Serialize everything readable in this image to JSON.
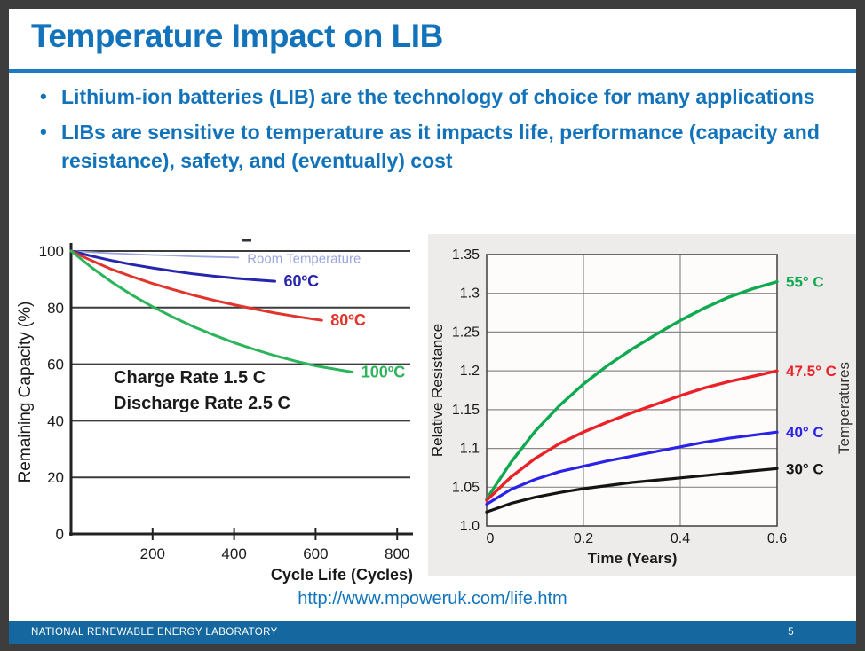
{
  "slide": {
    "title": "Temperature Impact on LIB",
    "bullets": [
      "Lithium-ion batteries (LIB) are the technology of choice for many applications",
      "LIBs are sensitive to temperature as it impacts life, performance (capacity and resistance), safety, and (eventually) cost"
    ],
    "source_url": "http://www.mpoweruk.com/life.htm",
    "footer": {
      "org": "NATIONAL RENEWABLE ENERGY LABORATORY",
      "page": "5"
    },
    "colors": {
      "accent_blue": "#1273bb",
      "rule_blue": "#1a7ac2",
      "footer_blue": "#15689f",
      "frame_gray": "#3d3d3d"
    }
  },
  "chart_data": [
    {
      "type": "line",
      "title": "",
      "xlabel": "Cycle Life (Cycles)",
      "ylabel": "Remaining Capacity (%)",
      "xlim": [
        0,
        830
      ],
      "ylim": [
        0,
        104
      ],
      "x_ticks": [
        200,
        400,
        600,
        800
      ],
      "y_ticks": [
        0,
        20,
        40,
        60,
        80,
        100
      ],
      "grid": "horizontal",
      "grid_color": "#3c3c3c",
      "annotation": [
        "Charge Rate 1.5 C",
        "Discharge Rate 2.5 C"
      ],
      "series": [
        {
          "name": "Room Temperature",
          "color": "#9aa5de",
          "width": 1.8,
          "label_size": 15,
          "label_weight": 400,
          "points": [
            [
              0,
              100
            ],
            [
              50,
              99.6
            ],
            [
              100,
              99.2
            ],
            [
              150,
              98.9
            ],
            [
              200,
              98.6
            ],
            [
              250,
              98.4
            ],
            [
              300,
              98.1
            ],
            [
              350,
              97.9
            ],
            [
              410,
              97.7
            ]
          ]
        },
        {
          "name": "60ºC",
          "color": "#2525ad",
          "width": 3,
          "label_size": 18,
          "label_weight": 700,
          "points": [
            [
              0,
              100
            ],
            [
              50,
              98.2
            ],
            [
              100,
              96.6
            ],
            [
              150,
              95.2
            ],
            [
              200,
              94.0
            ],
            [
              250,
              92.9
            ],
            [
              300,
              91.9
            ],
            [
              350,
              91.1
            ],
            [
              400,
              90.4
            ],
            [
              450,
              89.8
            ],
            [
              500,
              89.3
            ]
          ]
        },
        {
          "name": "80ºC",
          "color": "#e0342c",
          "width": 3,
          "label_size": 18,
          "label_weight": 700,
          "points": [
            [
              0,
              100
            ],
            [
              50,
              96.6
            ],
            [
              100,
              93.5
            ],
            [
              150,
              90.9
            ],
            [
              200,
              88.5
            ],
            [
              250,
              86.4
            ],
            [
              300,
              84.4
            ],
            [
              350,
              82.6
            ],
            [
              400,
              81.0
            ],
            [
              450,
              79.5
            ],
            [
              500,
              78.1
            ],
            [
              550,
              76.9
            ],
            [
              615,
              75.5
            ]
          ]
        },
        {
          "name": "100ºC",
          "color": "#2bb45a",
          "width": 3,
          "label_size": 18,
          "label_weight": 700,
          "points": [
            [
              0,
              100
            ],
            [
              50,
              94.2
            ],
            [
              100,
              89.0
            ],
            [
              150,
              84.4
            ],
            [
              200,
              80.3
            ],
            [
              250,
              76.6
            ],
            [
              300,
              73.3
            ],
            [
              350,
              70.3
            ],
            [
              400,
              67.6
            ],
            [
              450,
              65.2
            ],
            [
              500,
              63.0
            ],
            [
              550,
              61.1
            ],
            [
              600,
              59.4
            ],
            [
              690,
              57.2
            ]
          ]
        }
      ]
    },
    {
      "type": "line",
      "title": "",
      "xlabel": "Time (Years)",
      "ylabel": "Relative Resistance",
      "ylabel_right": "Temperatures",
      "xlim": [
        0,
        0.6
      ],
      "ylim": [
        1.0,
        1.35
      ],
      "x_ticks": [
        0,
        0.2,
        0.4,
        0.6
      ],
      "x_tick_labels": [
        "0",
        "0.2",
        "0.4",
        "0.6"
      ],
      "y_ticks": [
        1.0,
        1.05,
        1.1,
        1.15,
        1.2,
        1.25,
        1.3,
        1.35
      ],
      "y_tick_labels": [
        "1.0",
        "1.05",
        "1.1",
        "1.15",
        "1.2",
        "1.25",
        "1.3",
        "1.35"
      ],
      "grid": "both",
      "grid_color": "#8a8a8a",
      "bg_color": "#eeeceb",
      "series": [
        {
          "name": "55° C",
          "color": "#0fa94f",
          "width": 3.4,
          "label_size": 17,
          "label_weight": 700,
          "points": [
            [
              0,
              1.035
            ],
            [
              0.05,
              1.082
            ],
            [
              0.1,
              1.122
            ],
            [
              0.15,
              1.155
            ],
            [
              0.2,
              1.183
            ],
            [
              0.25,
              1.207
            ],
            [
              0.3,
              1.228
            ],
            [
              0.35,
              1.247
            ],
            [
              0.4,
              1.265
            ],
            [
              0.45,
              1.281
            ],
            [
              0.5,
              1.295
            ],
            [
              0.55,
              1.306
            ],
            [
              0.6,
              1.315
            ]
          ]
        },
        {
          "name": "47.5° C",
          "color": "#ea2128",
          "width": 3.4,
          "label_size": 17,
          "label_weight": 700,
          "points": [
            [
              0,
              1.033
            ],
            [
              0.05,
              1.063
            ],
            [
              0.1,
              1.087
            ],
            [
              0.15,
              1.106
            ],
            [
              0.2,
              1.121
            ],
            [
              0.25,
              1.134
            ],
            [
              0.3,
              1.146
            ],
            [
              0.35,
              1.157
            ],
            [
              0.4,
              1.168
            ],
            [
              0.45,
              1.178
            ],
            [
              0.5,
              1.186
            ],
            [
              0.55,
              1.193
            ],
            [
              0.6,
              1.2
            ]
          ]
        },
        {
          "name": "40° C",
          "color": "#2a22e8",
          "width": 3.2,
          "label_size": 17,
          "label_weight": 700,
          "points": [
            [
              0,
              1.028
            ],
            [
              0.05,
              1.047
            ],
            [
              0.1,
              1.06
            ],
            [
              0.15,
              1.07
            ],
            [
              0.2,
              1.077
            ],
            [
              0.25,
              1.084
            ],
            [
              0.3,
              1.09
            ],
            [
              0.35,
              1.096
            ],
            [
              0.4,
              1.102
            ],
            [
              0.45,
              1.108
            ],
            [
              0.5,
              1.113
            ],
            [
              0.55,
              1.117
            ],
            [
              0.6,
              1.121
            ]
          ]
        },
        {
          "name": "30° C",
          "color": "#141414",
          "width": 3.2,
          "label_size": 17,
          "label_weight": 700,
          "points": [
            [
              0,
              1.018
            ],
            [
              0.05,
              1.029
            ],
            [
              0.1,
              1.037
            ],
            [
              0.15,
              1.043
            ],
            [
              0.2,
              1.048
            ],
            [
              0.25,
              1.052
            ],
            [
              0.3,
              1.056
            ],
            [
              0.35,
              1.059
            ],
            [
              0.4,
              1.062
            ],
            [
              0.45,
              1.065
            ],
            [
              0.5,
              1.068
            ],
            [
              0.55,
              1.071
            ],
            [
              0.6,
              1.074
            ]
          ]
        }
      ]
    }
  ]
}
